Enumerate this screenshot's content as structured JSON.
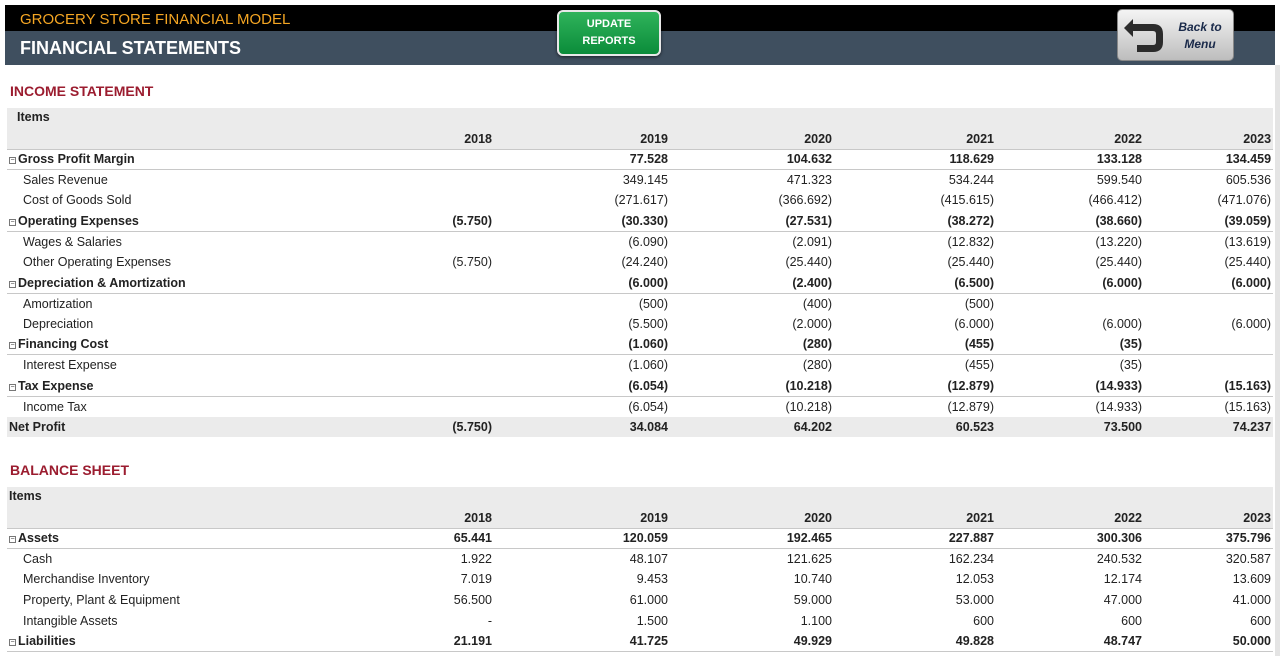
{
  "header": {
    "app_title": "GROCERY STORE FINANCIAL MODEL",
    "page_title": "FINANCIAL STATEMENTS",
    "update_button": [
      "UPDATE",
      "REPORTS"
    ],
    "back_button": [
      "Back to",
      "Menu"
    ]
  },
  "income_statement": {
    "title": "INCOME STATEMENT",
    "items_label": "Items",
    "years": [
      "2018",
      "2019",
      "2020",
      "2021",
      "2022",
      "2023"
    ],
    "rows": [
      {
        "type": "group",
        "label": "Gross Profit Margin",
        "values": [
          "",
          "77.528",
          "104.632",
          "118.629",
          "133.128",
          "134.459"
        ]
      },
      {
        "type": "detail",
        "label": "Sales Revenue",
        "values": [
          "",
          "349.145",
          "471.323",
          "534.244",
          "599.540",
          "605.536"
        ]
      },
      {
        "type": "detail",
        "label": "Cost of Goods Sold",
        "values": [
          "",
          "(271.617)",
          "(366.692)",
          "(415.615)",
          "(466.412)",
          "(471.076)"
        ]
      },
      {
        "type": "group",
        "label": "Operating Expenses",
        "values": [
          "(5.750)",
          "(30.330)",
          "(27.531)",
          "(38.272)",
          "(38.660)",
          "(39.059)"
        ]
      },
      {
        "type": "detail",
        "label": "Wages & Salaries",
        "values": [
          "",
          "(6.090)",
          "(2.091)",
          "(12.832)",
          "(13.220)",
          "(13.619)"
        ]
      },
      {
        "type": "detail",
        "label": "Other Operating Expenses",
        "values": [
          "(5.750)",
          "(24.240)",
          "(25.440)",
          "(25.440)",
          "(25.440)",
          "(25.440)"
        ]
      },
      {
        "type": "group",
        "label": "Depreciation & Amortization",
        "values": [
          "",
          "(6.000)",
          "(2.400)",
          "(6.500)",
          "(6.000)",
          "(6.000)"
        ]
      },
      {
        "type": "detail",
        "label": "Amortization",
        "values": [
          "",
          "(500)",
          "(400)",
          "(500)",
          "",
          ""
        ]
      },
      {
        "type": "detail",
        "label": "Depreciation",
        "values": [
          "",
          "(5.500)",
          "(2.000)",
          "(6.000)",
          "(6.000)",
          "(6.000)"
        ]
      },
      {
        "type": "group",
        "label": "Financing Cost",
        "values": [
          "",
          "(1.060)",
          "(280)",
          "(455)",
          "(35)",
          ""
        ]
      },
      {
        "type": "detail",
        "label": "Interest Expense",
        "values": [
          "",
          "(1.060)",
          "(280)",
          "(455)",
          "(35)",
          ""
        ]
      },
      {
        "type": "group",
        "label": "Tax Expense",
        "values": [
          "",
          "(6.054)",
          "(10.218)",
          "(12.879)",
          "(14.933)",
          "(15.163)"
        ]
      },
      {
        "type": "detail",
        "label": "Income Tax",
        "values": [
          "",
          "(6.054)",
          "(10.218)",
          "(12.879)",
          "(14.933)",
          "(15.163)"
        ]
      },
      {
        "type": "total",
        "label": "Net Profit",
        "values": [
          "(5.750)",
          "34.084",
          "64.202",
          "60.523",
          "73.500",
          "74.237"
        ]
      }
    ]
  },
  "balance_sheet": {
    "title": "BALANCE SHEET",
    "items_label": "Items",
    "years": [
      "2018",
      "2019",
      "2020",
      "2021",
      "2022",
      "2023"
    ],
    "rows": [
      {
        "type": "group",
        "label": "Assets",
        "values": [
          "65.441",
          "120.059",
          "192.465",
          "227.887",
          "300.306",
          "375.796"
        ]
      },
      {
        "type": "detail",
        "label": "Cash",
        "values": [
          "1.922",
          "48.107",
          "121.625",
          "162.234",
          "240.532",
          "320.587"
        ]
      },
      {
        "type": "detail",
        "label": "Merchandise Inventory",
        "values": [
          "7.019",
          "9.453",
          "10.740",
          "12.053",
          "12.174",
          "13.609"
        ]
      },
      {
        "type": "detail",
        "label": "Property, Plant & Equipment",
        "values": [
          "56.500",
          "61.000",
          "59.000",
          "53.000",
          "47.000",
          "41.000"
        ]
      },
      {
        "type": "detail",
        "label": "Intangible Assets",
        "values": [
          "-",
          "1.500",
          "1.100",
          "600",
          "600",
          "600"
        ]
      },
      {
        "type": "group",
        "label": "Liabilities",
        "values": [
          "21.191",
          "41.725",
          "49.929",
          "49.828",
          "48.747",
          "50.000"
        ]
      }
    ]
  }
}
